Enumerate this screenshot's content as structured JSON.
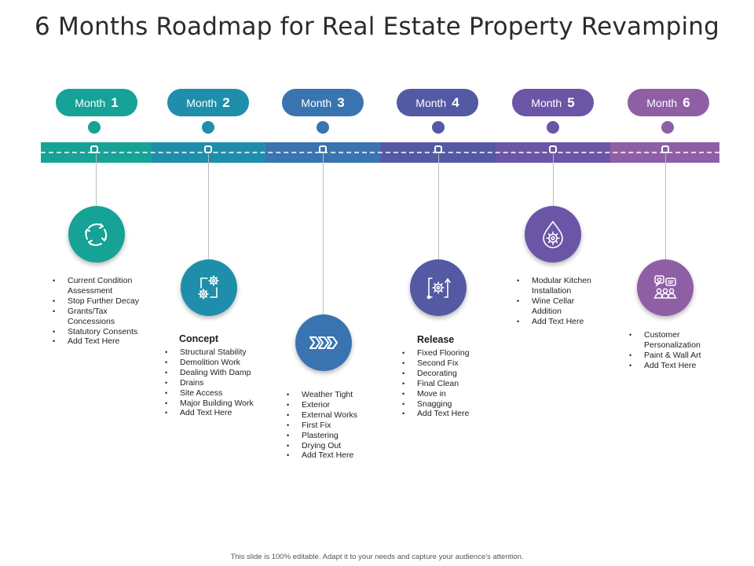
{
  "title": "6 Months Roadmap for Real Estate Property Revamping",
  "months": [
    {
      "label": "Month",
      "number": "1",
      "color": "#16a296",
      "icon": "circular-arrows-icon",
      "heading": "",
      "items": [
        "Current Condition Assessment",
        "Stop Further Decay",
        "Grants/Tax Concessions",
        "Statutory Consents",
        "Add Text Here"
      ]
    },
    {
      "label": "Month",
      "number": "2",
      "color": "#1f8eaa",
      "icon": "gears-flow-icon",
      "heading": "Concept",
      "items": [
        "Structural Stability",
        "Demolition Work",
        "Dealing With Damp",
        "Drains",
        "Site Access",
        "Major Building Work",
        "Add Text Here"
      ]
    },
    {
      "label": "Month",
      "number": "3",
      "color": "#3a74b0",
      "icon": "chevrons-icon",
      "heading": "",
      "items": [
        "Weather Tight",
        "Exterior",
        "External Works",
        "First Fix",
        "Plastering",
        "Drying Out",
        "Add Text Here"
      ]
    },
    {
      "label": "Month",
      "number": "4",
      "color": "#5459a3",
      "icon": "process-gear-icon",
      "heading": "Release",
      "items": [
        "Fixed Flooring",
        "Second Fix",
        "Decorating",
        "Final Clean",
        "Move in",
        "Snagging",
        "Add Text Here"
      ]
    },
    {
      "label": "Month",
      "number": "5",
      "color": "#6b55a6",
      "icon": "drop-gear-icon",
      "heading": "",
      "items": [
        "Modular Kitchen Installation",
        "Wine Cellar Addition",
        "Add Text Here"
      ]
    },
    {
      "label": "Month",
      "number": "6",
      "color": "#8f5fa5",
      "icon": "people-feedback-icon",
      "heading": "",
      "items": [
        "Customer Personalization",
        "Paint & Wall Art",
        "Add Text Here"
      ]
    }
  ],
  "footer": "This slide is 100% editable. Adapt it to your needs and capture your audience's attention."
}
